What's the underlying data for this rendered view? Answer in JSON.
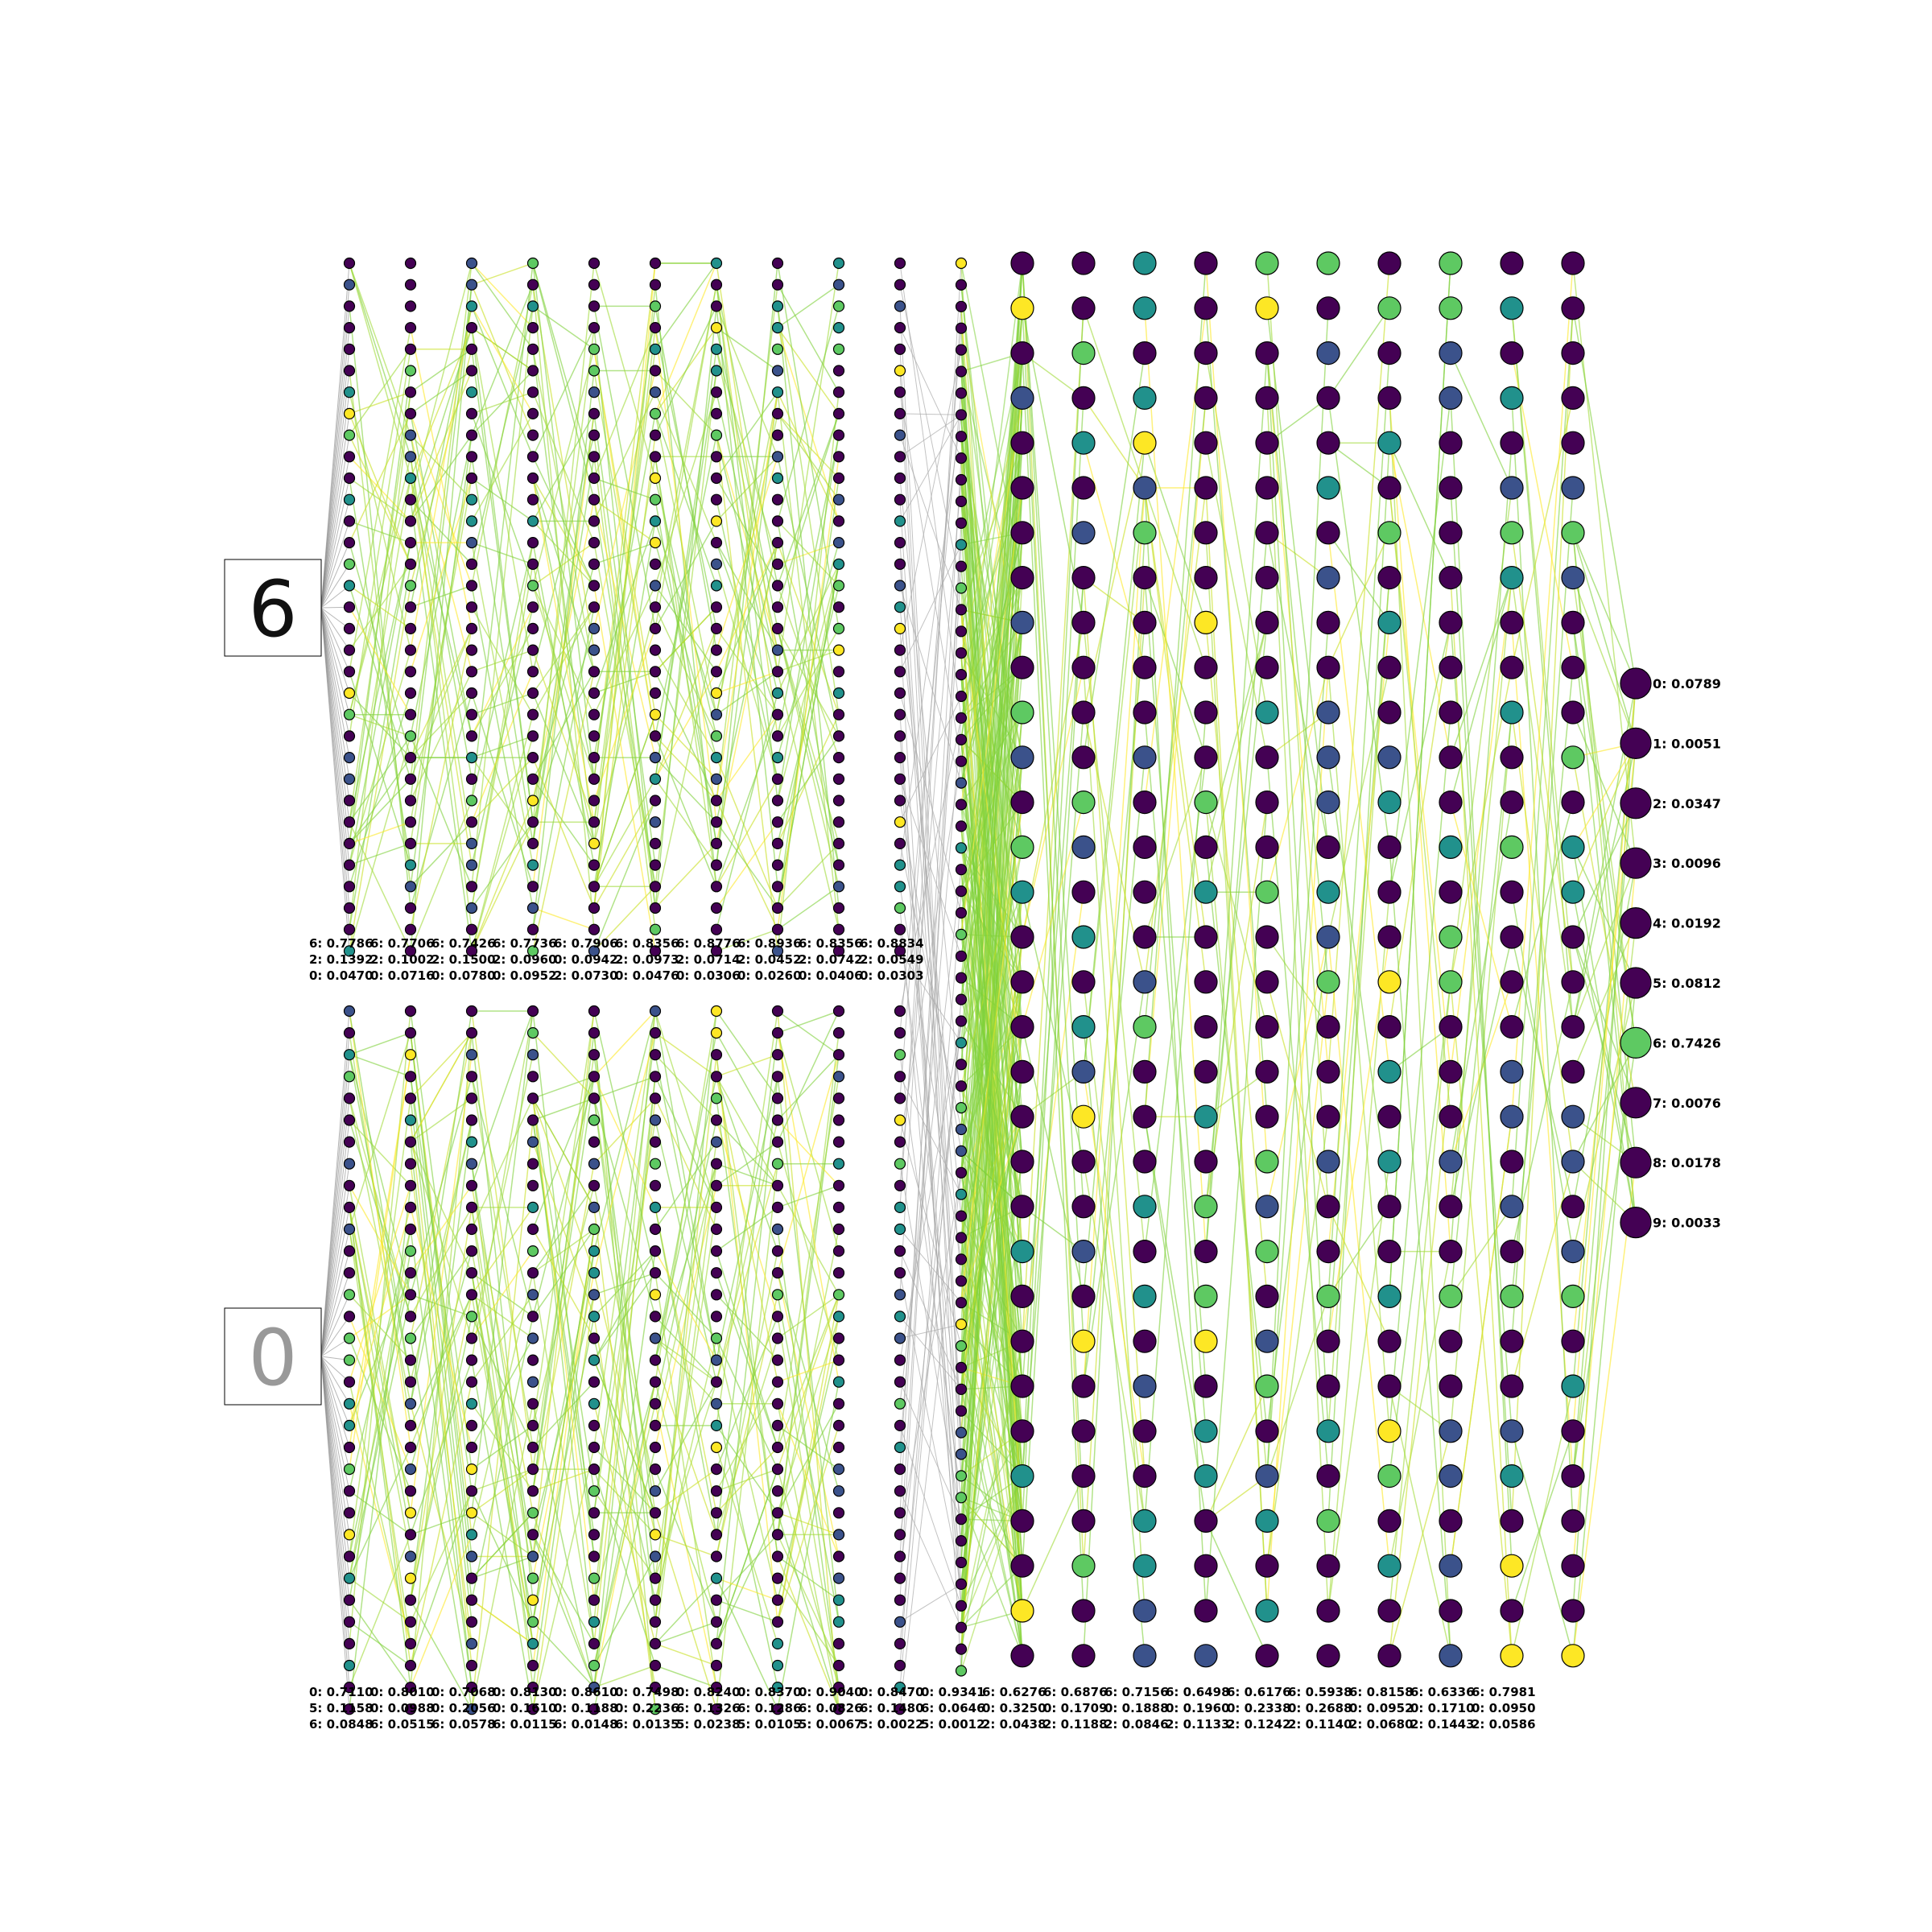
{
  "inputs": [
    {
      "digit": "6",
      "color": "#111111"
    },
    {
      "digit": "0",
      "color": "#999999"
    }
  ],
  "top_scores": [
    [
      "6: 0.7786",
      "2: 0.1392",
      "0: 0.0470"
    ],
    [
      "6: 0.7706",
      "2: 0.1002",
      "0: 0.0716"
    ],
    [
      "6: 0.7426",
      "2: 0.1500",
      "0: 0.0780"
    ],
    [
      "6: 0.7736",
      "2: 0.0960",
      "0: 0.0952"
    ],
    [
      "6: 0.7906",
      "0: 0.0942",
      "2: 0.0730"
    ],
    [
      "6: 0.8356",
      "2: 0.0973",
      "0: 0.0476"
    ],
    [
      "6: 0.8776",
      "2: 0.0714",
      "0: 0.0306"
    ],
    [
      "6: 0.8936",
      "2: 0.0452",
      "0: 0.0260"
    ],
    [
      "6: 0.8356",
      "2: 0.0742",
      "0: 0.0406"
    ],
    [
      "6: 0.8834",
      "2: 0.0549",
      "0: 0.0303"
    ]
  ],
  "bottom_scores": [
    [
      "0: 0.7110",
      "5: 0.1158",
      "6: 0.0848"
    ],
    [
      "0: 0.8010",
      "0: 0.0988",
      "6: 0.0515"
    ],
    [
      "0: 0.7068",
      "0: 0.2056",
      "6: 0.0578"
    ],
    [
      "0: 0.8130",
      "0: 0.1610",
      "6: 0.0115"
    ],
    [
      "0: 0.8610",
      "0: 0.1188",
      "6: 0.0148"
    ],
    [
      "0: 0.7498",
      "0: 0.2236",
      "6: 0.0135"
    ],
    [
      "0: 0.8240",
      "6: 0.1326",
      "5: 0.0238"
    ],
    [
      "0: 0.8370",
      "6: 0.1286",
      "5: 0.0105"
    ],
    [
      "0: 0.9040",
      "6: 0.0826",
      "5: 0.0067"
    ],
    [
      "0: 0.8470",
      "6: 0.1480",
      "5: 0.0022"
    ],
    [
      "0: 0.9341",
      "6: 0.0646",
      "5: 0.0012"
    ],
    [
      "6: 0.6276",
      "0: 0.3250",
      "2: 0.0438"
    ],
    [
      "6: 0.6876",
      "0: 0.1709",
      "2: 0.1188"
    ],
    [
      "6: 0.7156",
      "0: 0.1888",
      "2: 0.0846"
    ],
    [
      "6: 0.6498",
      "0: 0.1960",
      "2: 0.1133"
    ],
    [
      "6: 0.6176",
      "0: 0.2338",
      "2: 0.1242"
    ],
    [
      "6: 0.5938",
      "0: 0.2688",
      "2: 0.1140"
    ],
    [
      "6: 0.8158",
      "0: 0.0952",
      "2: 0.0680"
    ],
    [
      "6: 0.6336",
      "0: 0.1710",
      "2: 0.1443"
    ],
    [
      "6: 0.7981",
      "0: 0.0950",
      "2: 0.0586"
    ]
  ],
  "outputs": [
    {
      "label": "0: 0.0789",
      "value": 0.0789
    },
    {
      "label": "1: 0.0051",
      "value": 0.0051
    },
    {
      "label": "2: 0.0347",
      "value": 0.0347
    },
    {
      "label": "3: 0.0096",
      "value": 0.0096
    },
    {
      "label": "4: 0.0192",
      "value": 0.0192
    },
    {
      "label": "5: 0.0812",
      "value": 0.0812
    },
    {
      "label": "6: 0.7426",
      "value": 0.7426
    },
    {
      "label": "7: 0.0076",
      "value": 0.0076
    },
    {
      "label": "8: 0.0178",
      "value": 0.0178
    },
    {
      "label": "9: 0.0033",
      "value": 0.0033
    }
  ],
  "palette": [
    "#440154",
    "#3b528b",
    "#21918c",
    "#5ec962",
    "#fde725"
  ],
  "edge_colors": [
    "#7fd13b",
    "#a0da39",
    "#c8e020",
    "#fde725"
  ]
}
